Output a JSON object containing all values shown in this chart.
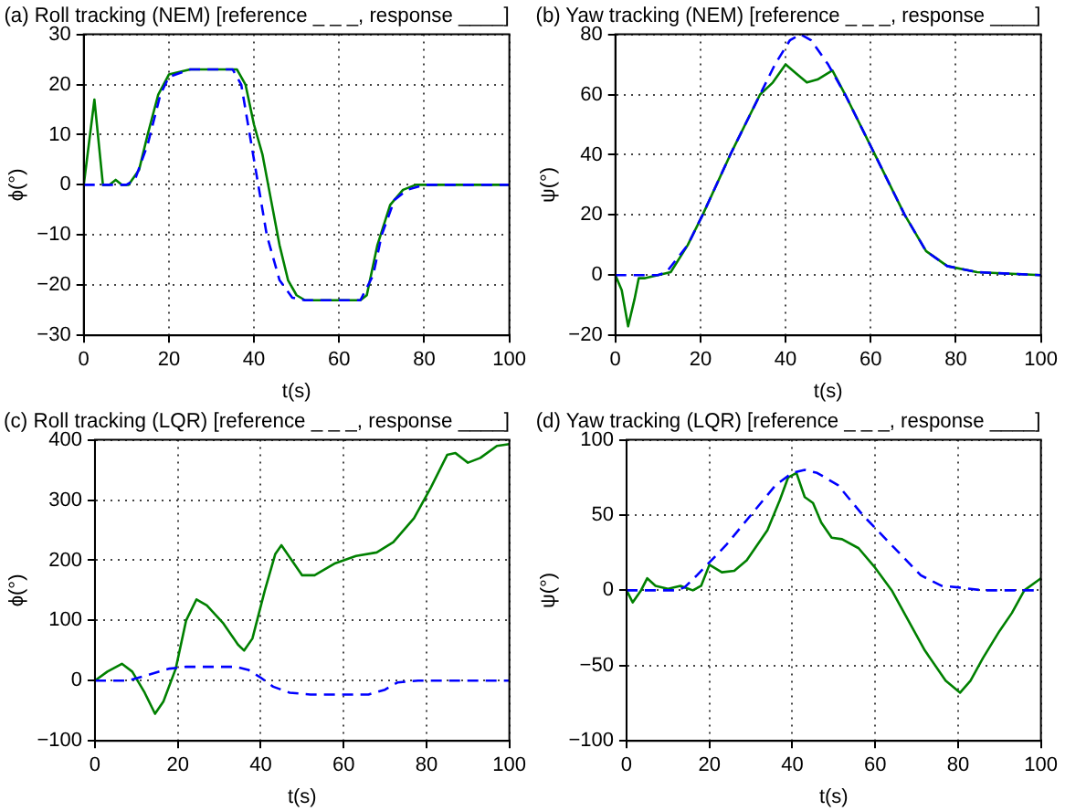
{
  "chart_data": [
    {
      "type": "line",
      "title": "(a) Roll tracking (NEM) [reference _ _ _, response ____]",
      "xlabel": "t(s)",
      "ylabel": "ϕ(°)",
      "xlim": [
        0,
        100
      ],
      "xticks": [
        0,
        20,
        40,
        60,
        80,
        100
      ],
      "ylim": [
        -30,
        30
      ],
      "yticks": [
        -30,
        -20,
        -10,
        0,
        10,
        20,
        30
      ],
      "grid": true,
      "legend": false,
      "series": [
        {
          "color": "#0000ff",
          "line_style": "dashed",
          "x": [
            0,
            5,
            10,
            12,
            15,
            18,
            20,
            25,
            35,
            37,
            40,
            43,
            46,
            49,
            52,
            60,
            65,
            68,
            70,
            73,
            76,
            80,
            100
          ],
          "values": [
            0,
            0,
            0,
            1,
            8,
            18,
            21.5,
            23,
            23,
            20,
            5,
            -10,
            -19,
            -22.5,
            -23,
            -23,
            -23,
            -18,
            -10,
            -3,
            -1,
            0,
            0
          ]
        },
        {
          "color": "#008000",
          "line_style": "solid",
          "x": [
            0,
            2.5,
            4.5,
            6,
            7.5,
            9,
            10.5,
            13,
            15,
            17.5,
            20,
            25,
            36,
            38,
            40,
            42,
            44,
            46,
            48,
            50,
            52,
            65,
            66.5,
            69,
            72,
            75,
            78,
            100
          ],
          "values": [
            0,
            17,
            0,
            0,
            1,
            0,
            0,
            3,
            10,
            18,
            22,
            23,
            23,
            20,
            12,
            6,
            -3,
            -12,
            -19,
            -22,
            -23,
            -23,
            -22,
            -12,
            -4,
            -1,
            0,
            0
          ]
        }
      ]
    },
    {
      "type": "line",
      "title": "(b) Yaw tracking (NEM) [reference _ _ _, response ____]",
      "xlabel": "t(s)",
      "ylabel": "ψ(°)",
      "xlim": [
        0,
        100
      ],
      "xticks": [
        0,
        20,
        40,
        60,
        80,
        100
      ],
      "ylim": [
        -20,
        80
      ],
      "yticks": [
        -20,
        0,
        20,
        40,
        60,
        80
      ],
      "grid": true,
      "legend": false,
      "series": [
        {
          "color": "#0000ff",
          "line_style": "dashed",
          "x": [
            0,
            10,
            12,
            17,
            20.5,
            27,
            34,
            37.5,
            41,
            43.5,
            46,
            50,
            54,
            61,
            68,
            73,
            78,
            85,
            100
          ],
          "values": [
            0,
            0,
            1,
            10,
            20,
            40,
            60,
            70,
            78,
            80,
            78,
            70,
            60,
            40,
            20,
            8,
            3,
            1,
            0
          ]
        },
        {
          "color": "#008000",
          "line_style": "solid",
          "x": [
            0,
            1.5,
            3,
            4.5,
            5.5,
            7,
            10,
            13,
            17,
            20.5,
            27,
            34,
            37,
            40,
            42.5,
            45,
            47.5,
            51,
            54,
            61,
            68,
            73,
            78,
            85,
            100
          ],
          "values": [
            0,
            -5,
            -17,
            -8,
            -1,
            -1,
            0,
            1,
            10,
            20,
            40,
            60,
            64,
            70,
            67,
            64,
            65,
            68,
            60,
            40,
            20,
            8,
            3,
            1,
            0
          ]
        }
      ]
    },
    {
      "type": "line",
      "title": "(c) Roll tracking (LQR) [reference _ _ _, response ____]",
      "xlabel": "t(s)",
      "ylabel": "ϕ(°)",
      "xlim": [
        0,
        100
      ],
      "xticks": [
        0,
        20,
        40,
        60,
        80,
        100
      ],
      "ylim": [
        -100,
        400
      ],
      "yticks": [
        -100,
        0,
        100,
        200,
        300,
        400
      ],
      "grid": true,
      "legend": false,
      "series": [
        {
          "color": "#0000ff",
          "line_style": "dashed",
          "x": [
            0,
            8,
            13,
            18,
            22,
            34,
            37,
            40,
            43,
            47,
            52,
            66,
            70,
            73,
            78,
            100
          ],
          "values": [
            0,
            0,
            10,
            20,
            23,
            23,
            18,
            5,
            -10,
            -20,
            -23,
            -23,
            -15,
            -3,
            0,
            0
          ]
        },
        {
          "color": "#008000",
          "line_style": "solid",
          "x": [
            0,
            3,
            6.5,
            9,
            12,
            14.5,
            16.5,
            19.5,
            22,
            24.5,
            27,
            31,
            34.5,
            36,
            38,
            41,
            43.5,
            45,
            47,
            50,
            53,
            58,
            63,
            68,
            72,
            77,
            81,
            85,
            87,
            90,
            93,
            97,
            100
          ],
          "values": [
            0,
            15,
            28,
            15,
            -20,
            -55,
            -35,
            20,
            100,
            135,
            125,
            95,
            60,
            50,
            70,
            150,
            210,
            225,
            205,
            175,
            175,
            195,
            207,
            213,
            230,
            270,
            320,
            375,
            378,
            362,
            370,
            390,
            393
          ]
        }
      ]
    },
    {
      "type": "line",
      "title": "(d) Yaw tracking (LQR) [reference _ _ _, response ____]",
      "xlabel": "t(s)",
      "ylabel": "ψ(°)",
      "xlim": [
        0,
        100
      ],
      "xticks": [
        0,
        20,
        40,
        60,
        80,
        100
      ],
      "ylim": [
        -100,
        100
      ],
      "yticks": [
        -100,
        -50,
        0,
        50,
        100
      ],
      "grid": true,
      "legend": false,
      "series": [
        {
          "color": "#0000ff",
          "line_style": "dashed",
          "x": [
            0,
            12,
            14,
            17,
            24,
            30,
            36,
            40,
            43,
            46,
            51,
            57,
            64,
            71,
            76,
            80,
            86,
            100
          ],
          "values": [
            0,
            0,
            2,
            10,
            30,
            50,
            70,
            78,
            80,
            78,
            70,
            50,
            30,
            10,
            3,
            2,
            0,
            0
          ]
        },
        {
          "color": "#008000",
          "line_style": "solid",
          "x": [
            0,
            1.5,
            3.5,
            5,
            7,
            10,
            13,
            16,
            18,
            20,
            23,
            26,
            29,
            34,
            37,
            39,
            41,
            43,
            45,
            47,
            49.5,
            52,
            56,
            60,
            64,
            68,
            72,
            77,
            80.5,
            83,
            86,
            90,
            93,
            96,
            100
          ],
          "values": [
            0,
            -8,
            0,
            8,
            3,
            1,
            3,
            0,
            3,
            17,
            12,
            13,
            20,
            40,
            60,
            75,
            78,
            62,
            58,
            45,
            35,
            34,
            28,
            15,
            0,
            -20,
            -40,
            -60,
            -68,
            -60,
            -45,
            -27,
            -15,
            0,
            8
          ]
        }
      ]
    }
  ]
}
